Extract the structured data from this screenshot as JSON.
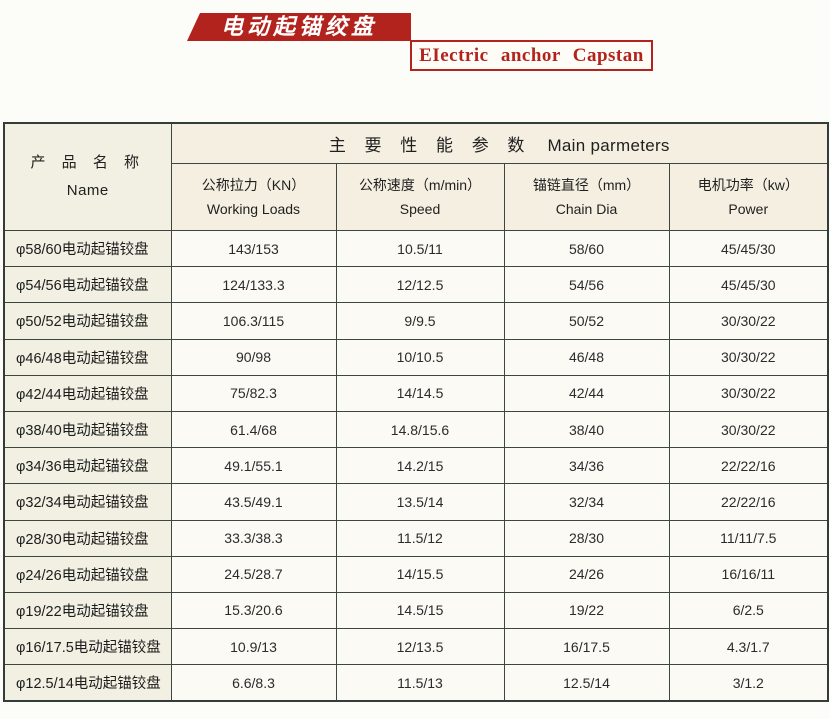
{
  "header": {
    "title_cn": "电动起锚绞盘",
    "subtitle_en": "EIectric anchor Capstan",
    "banner_color": "#b3231d"
  },
  "table": {
    "name_header": {
      "cn": "产 品 名 称",
      "en": "Name"
    },
    "main_header": {
      "cn": "主 要 性 能 参 数",
      "en": "Main parmeters"
    },
    "columns": [
      {
        "cn": "公称拉力（KN）",
        "en": "Working Loads"
      },
      {
        "cn": "公称速度（m/min）",
        "en": "Speed"
      },
      {
        "cn": "锚链直径（mm）",
        "en": "Chain Dia"
      },
      {
        "cn": "电机功率（kw）",
        "en": "Power"
      }
    ],
    "rows": [
      {
        "name": "φ58/60电动起锚铰盘",
        "working_load": "143/153",
        "speed": "10.5/11",
        "chain_dia": "58/60",
        "power": "45/45/30"
      },
      {
        "name": "φ54/56电动起锚铰盘",
        "working_load": "124/133.3",
        "speed": "12/12.5",
        "chain_dia": "54/56",
        "power": "45/45/30"
      },
      {
        "name": "φ50/52电动起锚铰盘",
        "working_load": "106.3/115",
        "speed": "9/9.5",
        "chain_dia": "50/52",
        "power": "30/30/22"
      },
      {
        "name": "φ46/48电动起锚铰盘",
        "working_load": "90/98",
        "speed": "10/10.5",
        "chain_dia": "46/48",
        "power": "30/30/22"
      },
      {
        "name": "φ42/44电动起锚铰盘",
        "working_load": "75/82.3",
        "speed": "14/14.5",
        "chain_dia": "42/44",
        "power": "30/30/22"
      },
      {
        "name": "φ38/40电动起锚铰盘",
        "working_load": "61.4/68",
        "speed": "14.8/15.6",
        "chain_dia": "38/40",
        "power": "30/30/22"
      },
      {
        "name": "φ34/36电动起锚铰盘",
        "working_load": "49.1/55.1",
        "speed": "14.2/15",
        "chain_dia": "34/36",
        "power": "22/22/16"
      },
      {
        "name": "φ32/34电动起锚铰盘",
        "working_load": "43.5/49.1",
        "speed": "13.5/14",
        "chain_dia": "32/34",
        "power": "22/22/16"
      },
      {
        "name": "φ28/30电动起锚铰盘",
        "working_load": "33.3/38.3",
        "speed": "11.5/12",
        "chain_dia": "28/30",
        "power": "11/11/7.5"
      },
      {
        "name": "φ24/26电动起锚铰盘",
        "working_load": "24.5/28.7",
        "speed": "14/15.5",
        "chain_dia": "24/26",
        "power": "16/16/11"
      },
      {
        "name": "φ19/22电动起锚铰盘",
        "working_load": "15.3/20.6",
        "speed": "14.5/15",
        "chain_dia": "19/22",
        "power": "6/2.5"
      },
      {
        "name": "φ16/17.5电动起锚铰盘",
        "working_load": "10.9/13",
        "speed": "12/13.5",
        "chain_dia": "16/17.5",
        "power": "4.3/1.7"
      },
      {
        "name": "φ12.5/14电动起锚铰盘",
        "working_load": "6.6/8.3",
        "speed": "11.5/13",
        "chain_dia": "12.5/14",
        "power": "3/1.2"
      }
    ]
  }
}
